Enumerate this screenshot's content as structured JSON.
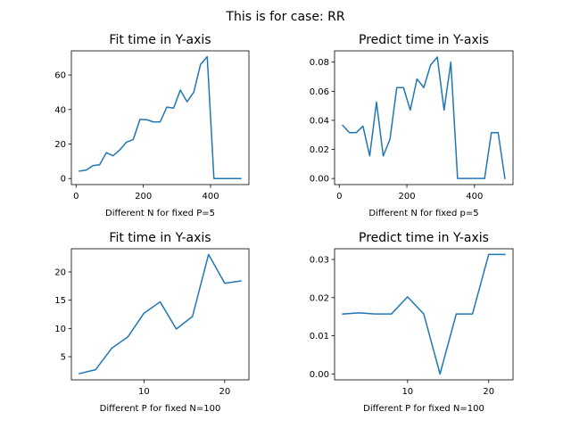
{
  "figure": {
    "suptitle": "This is for case: RR"
  },
  "chart_data": [
    {
      "type": "line",
      "title": "Fit time in Y-axis",
      "xlabel": "Different N for fixed P=5",
      "ylabel": "",
      "color": "#1f77b4",
      "xlim": [
        -14,
        514
      ],
      "ylim": [
        -3.5,
        74
      ],
      "xticks": [
        0,
        200,
        400
      ],
      "yticks": [
        0,
        20,
        40,
        60
      ],
      "grid": false,
      "x": [
        10,
        30,
        50,
        70,
        90,
        110,
        130,
        150,
        170,
        190,
        210,
        230,
        250,
        270,
        290,
        310,
        330,
        350,
        370,
        390,
        410,
        430,
        450,
        470,
        490
      ],
      "y": [
        4.3,
        4.9,
        7.5,
        8.0,
        15.0,
        13.2,
        16.6,
        21.1,
        22.6,
        34.3,
        34.1,
        32.8,
        32.8,
        41.4,
        40.8,
        51.3,
        44.5,
        50.1,
        66.1,
        70.6,
        0,
        0,
        0,
        0,
        0
      ]
    },
    {
      "type": "line",
      "title": "Predict time in Y-axis",
      "xlabel": "Different N for fixed p=5",
      "ylabel": "",
      "color": "#1f77b4",
      "xlim": [
        -14,
        514
      ],
      "ylim": [
        -0.0042,
        0.0878
      ],
      "xticks": [
        0,
        200,
        400
      ],
      "yticks": [
        0.0,
        0.02,
        0.04,
        0.06,
        0.08
      ],
      "ytick_labels": [
        "0.00",
        "0.02",
        "0.04",
        "0.06",
        "0.08"
      ],
      "grid": false,
      "x": [
        10,
        30,
        50,
        70,
        90,
        110,
        130,
        150,
        170,
        190,
        210,
        230,
        250,
        270,
        290,
        310,
        330,
        350,
        370,
        390,
        410,
        430,
        450,
        470,
        490
      ],
      "y": [
        0.0365,
        0.0315,
        0.0315,
        0.036,
        0.0155,
        0.0525,
        0.0155,
        0.027,
        0.0625,
        0.0625,
        0.047,
        0.0685,
        0.0625,
        0.078,
        0.0835,
        0.047,
        0.08,
        0,
        0,
        0,
        0,
        0,
        0.0315,
        0.0315,
        0
      ]
    },
    {
      "type": "line",
      "title": "Fit time in Y-axis",
      "xlabel": "Different P for fixed N=100",
      "ylabel": "",
      "color": "#1f77b4",
      "xlim": [
        1,
        23
      ],
      "ylim": [
        0.9,
        24.1
      ],
      "xticks": [
        10,
        20
      ],
      "yticks": [
        5,
        10,
        15,
        20
      ],
      "grid": false,
      "x": [
        2,
        4,
        6,
        8,
        10,
        12,
        14,
        16,
        18,
        20,
        22
      ],
      "y": [
        2.0,
        2.7,
        6.5,
        8.5,
        12.7,
        14.7,
        9.9,
        12.1,
        23.1,
        18.0,
        18.4
      ]
    },
    {
      "type": "line",
      "title": "Predict time in Y-axis",
      "xlabel": "Different P for fixed N=100",
      "ylabel": "",
      "color": "#1f77b4",
      "xlim": [
        1,
        23
      ],
      "ylim": [
        -0.00155,
        0.0328
      ],
      "xticks": [
        10,
        20
      ],
      "yticks": [
        0.0,
        0.01,
        0.02,
        0.03
      ],
      "ytick_labels": [
        "0.00",
        "0.01",
        "0.02",
        "0.03"
      ],
      "grid": false,
      "x": [
        2,
        4,
        6,
        8,
        10,
        12,
        14,
        16,
        18,
        20,
        22
      ],
      "y": [
        0.0157,
        0.016,
        0.0157,
        0.0157,
        0.0202,
        0.0157,
        0.0,
        0.0157,
        0.0157,
        0.0313,
        0.0313
      ]
    }
  ]
}
